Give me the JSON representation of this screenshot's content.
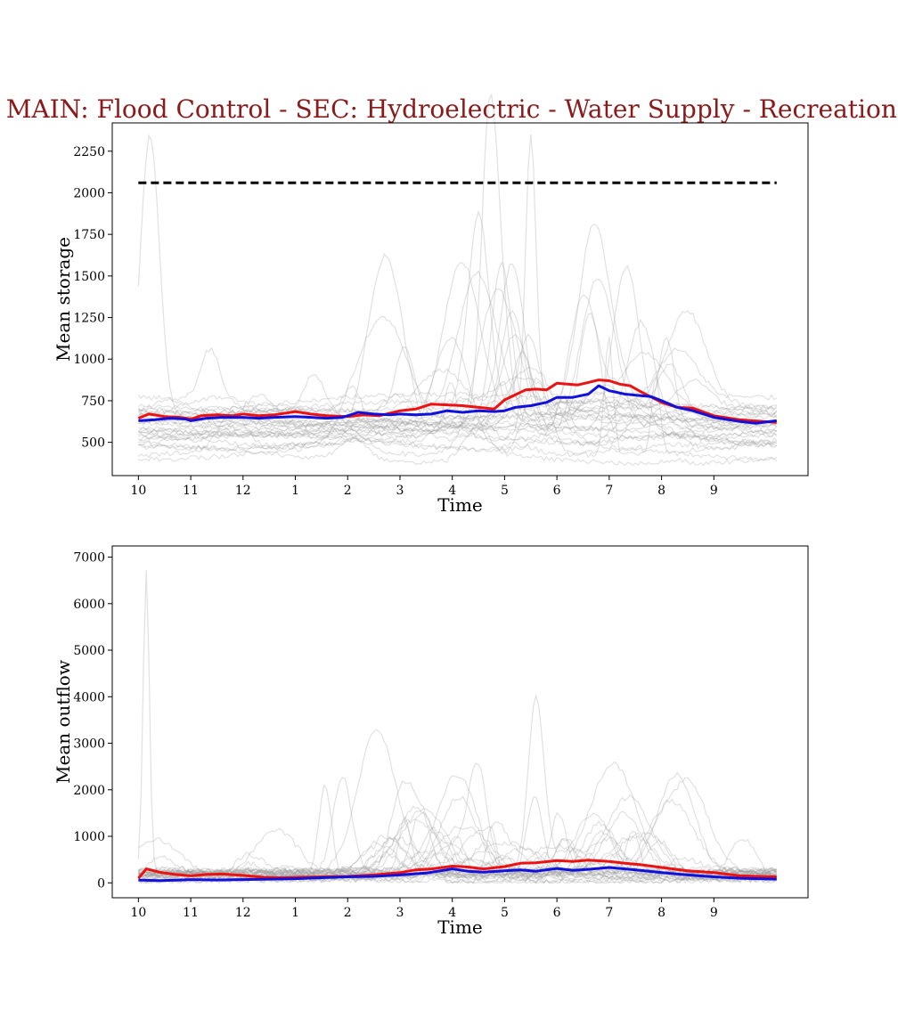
{
  "title": "MAIN: Flood Control - SEC: Hydroelectric - Water Supply - Recreation -",
  "colors": {
    "title": "#8b1a1a",
    "ensemble": "#9a9a9a",
    "red_series": "#ee1111",
    "blue_series": "#1111dd",
    "reference": "#000000"
  },
  "chart_data": [
    {
      "type": "line",
      "xlabel": "Time",
      "ylabel": "Mean storage",
      "ylim": [
        300,
        2420
      ],
      "xlim": [
        -0.5,
        12.8
      ],
      "x_ticks": [
        {
          "pos": 0,
          "label": "10"
        },
        {
          "pos": 1,
          "label": "11"
        },
        {
          "pos": 2,
          "label": "12"
        },
        {
          "pos": 3,
          "label": "1"
        },
        {
          "pos": 4,
          "label": "2"
        },
        {
          "pos": 5,
          "label": "3"
        },
        {
          "pos": 6,
          "label": "4"
        },
        {
          "pos": 7,
          "label": "5"
        },
        {
          "pos": 8,
          "label": "6"
        },
        {
          "pos": 9,
          "label": "7"
        },
        {
          "pos": 10,
          "label": "8"
        },
        {
          "pos": 11,
          "label": "9"
        }
      ],
      "y_ticks": [
        500,
        750,
        1000,
        1250,
        1500,
        1750,
        2000,
        2250
      ],
      "grid": false,
      "reference_line": {
        "y": 2060,
        "x": [
          0,
          12.2
        ],
        "style": "dashed"
      },
      "ensemble": {
        "count": 30,
        "mode": "storage"
      },
      "series": [
        {
          "color_key": "red_series",
          "x": [
            0,
            0.2,
            0.5,
            0.8,
            1.0,
            1.2,
            1.5,
            1.8,
            2.0,
            2.3,
            2.6,
            3.0,
            3.3,
            3.6,
            4.0,
            4.3,
            4.6,
            5.0,
            5.3,
            5.6,
            5.9,
            6.2,
            6.5,
            6.8,
            7.0,
            7.2,
            7.4,
            7.6,
            7.8,
            8.0,
            8.2,
            8.4,
            8.6,
            8.8,
            9.0,
            9.2,
            9.4,
            9.6,
            10.0,
            10.3,
            10.6,
            11.0,
            11.5,
            12.2
          ],
          "y": [
            645,
            670,
            655,
            650,
            640,
            660,
            665,
            660,
            670,
            660,
            665,
            685,
            670,
            660,
            655,
            665,
            660,
            690,
            700,
            730,
            725,
            720,
            710,
            700,
            755,
            785,
            815,
            820,
            815,
            855,
            850,
            845,
            860,
            875,
            870,
            850,
            840,
            805,
            740,
            710,
            705,
            660,
            635,
            620
          ]
        },
        {
          "color_key": "blue_series",
          "x": [
            0,
            0.3,
            0.6,
            0.9,
            1.0,
            1.3,
            1.6,
            2.0,
            2.3,
            2.6,
            3.0,
            3.3,
            3.6,
            3.9,
            4.0,
            4.2,
            4.5,
            4.8,
            5.0,
            5.3,
            5.6,
            5.9,
            6.2,
            6.5,
            6.8,
            7.0,
            7.2,
            7.5,
            7.8,
            8.0,
            8.3,
            8.6,
            8.8,
            9.0,
            9.3,
            9.6,
            9.8,
            10.0,
            10.3,
            10.6,
            11.0,
            11.5,
            11.8,
            12.2
          ],
          "y": [
            630,
            635,
            645,
            640,
            630,
            645,
            650,
            650,
            645,
            650,
            655,
            650,
            645,
            650,
            660,
            680,
            670,
            665,
            670,
            665,
            670,
            690,
            680,
            690,
            685,
            690,
            710,
            720,
            740,
            770,
            770,
            790,
            840,
            810,
            790,
            780,
            775,
            750,
            710,
            690,
            650,
            625,
            615,
            630
          ]
        }
      ]
    },
    {
      "type": "line",
      "xlabel": "Time",
      "ylabel": "Mean outflow",
      "ylim": [
        -320,
        7240
      ],
      "xlim": [
        -0.5,
        12.8
      ],
      "x_ticks": [
        {
          "pos": 0,
          "label": "10"
        },
        {
          "pos": 1,
          "label": "11"
        },
        {
          "pos": 2,
          "label": "12"
        },
        {
          "pos": 3,
          "label": "1"
        },
        {
          "pos": 4,
          "label": "2"
        },
        {
          "pos": 5,
          "label": "3"
        },
        {
          "pos": 6,
          "label": "4"
        },
        {
          "pos": 7,
          "label": "5"
        },
        {
          "pos": 8,
          "label": "6"
        },
        {
          "pos": 9,
          "label": "7"
        },
        {
          "pos": 10,
          "label": "8"
        },
        {
          "pos": 11,
          "label": "9"
        }
      ],
      "y_ticks": [
        0,
        1000,
        2000,
        3000,
        4000,
        5000,
        6000,
        7000
      ],
      "grid": false,
      "ensemble": {
        "count": 30,
        "mode": "outflow"
      },
      "series": [
        {
          "color_key": "red_series",
          "x": [
            0,
            0.15,
            0.4,
            0.7,
            1.0,
            1.3,
            1.6,
            2.0,
            2.4,
            2.8,
            3.0,
            3.5,
            4.0,
            4.5,
            5.0,
            5.3,
            5.6,
            6.0,
            6.3,
            6.6,
            7.0,
            7.3,
            7.6,
            8.0,
            8.3,
            8.6,
            9.0,
            9.3,
            9.6,
            10.0,
            10.5,
            11.0,
            11.5,
            12.2
          ],
          "y": [
            100,
            300,
            230,
            180,
            150,
            180,
            190,
            160,
            120,
            110,
            120,
            130,
            140,
            170,
            220,
            280,
            300,
            360,
            340,
            300,
            350,
            420,
            430,
            480,
            460,
            490,
            460,
            420,
            390,
            330,
            260,
            220,
            150,
            130
          ]
        },
        {
          "color_key": "blue_series",
          "x": [
            0,
            0.4,
            0.8,
            1.0,
            1.5,
            2.0,
            2.5,
            3.0,
            3.5,
            4.0,
            4.5,
            5.0,
            5.5,
            6.0,
            6.3,
            6.6,
            7.0,
            7.3,
            7.6,
            8.0,
            8.3,
            8.6,
            9.0,
            9.3,
            9.6,
            10.0,
            10.5,
            11.0,
            11.5,
            12.2
          ],
          "y": [
            60,
            50,
            60,
            70,
            60,
            70,
            80,
            90,
            110,
            130,
            140,
            170,
            210,
            300,
            250,
            230,
            260,
            280,
            250,
            310,
            270,
            290,
            330,
            300,
            270,
            220,
            170,
            130,
            100,
            80
          ]
        }
      ]
    }
  ]
}
